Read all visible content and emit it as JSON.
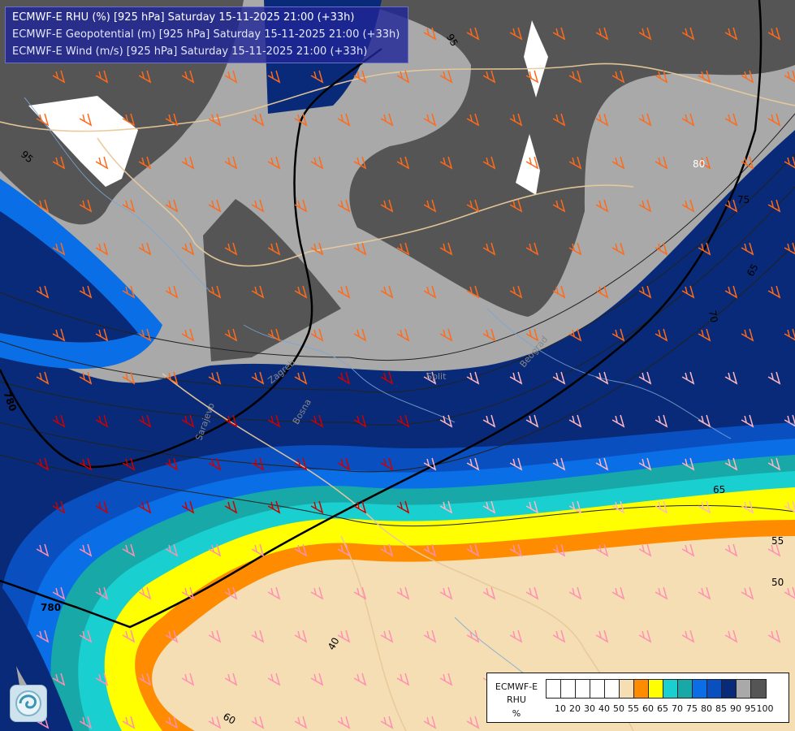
{
  "header": {
    "line1": "ECMWF-E RHU (%) [925 hPa] Saturday 15-11-2025 21:00 (+33h)",
    "line2": "ECMWF-E Geopotential (m) [925 hPa] Saturday 15-11-2025 21:00 (+33h)",
    "line3": "ECMWF-E Wind (m/s) [925 hPa] Saturday 15-11-2025 21:00 (+33h)"
  },
  "legend": {
    "title1": "ECMWF-E",
    "title2": "RHU",
    "title3": "%",
    "colors": [
      "#ffffff",
      "#ffffff",
      "#ffffff",
      "#ffffff",
      "#ffffff",
      "#f5deb3",
      "#ff8c00",
      "#ffff00",
      "#19cfcf",
      "#19a8a8",
      "#0a6ee6",
      "#0a4fbf",
      "#082a78",
      "#a9a9a9",
      "#555555"
    ],
    "ticks": [
      "10",
      "20",
      "30",
      "40",
      "50",
      "55",
      "60",
      "65",
      "70",
      "75",
      "80",
      "85",
      "90",
      "95",
      "100"
    ]
  },
  "contour_labels": {
    "rh": [
      "95",
      "95",
      "80",
      "75",
      "65",
      "70",
      "65",
      "55",
      "50",
      "60",
      "40"
    ],
    "geopotential": [
      "780",
      "780"
    ]
  },
  "place_labels": [
    "Zagreb",
    "Bosna",
    "Sarajevo",
    "Beograd",
    "Split"
  ],
  "logo_icon": "ecmwf-swirl-icon"
}
